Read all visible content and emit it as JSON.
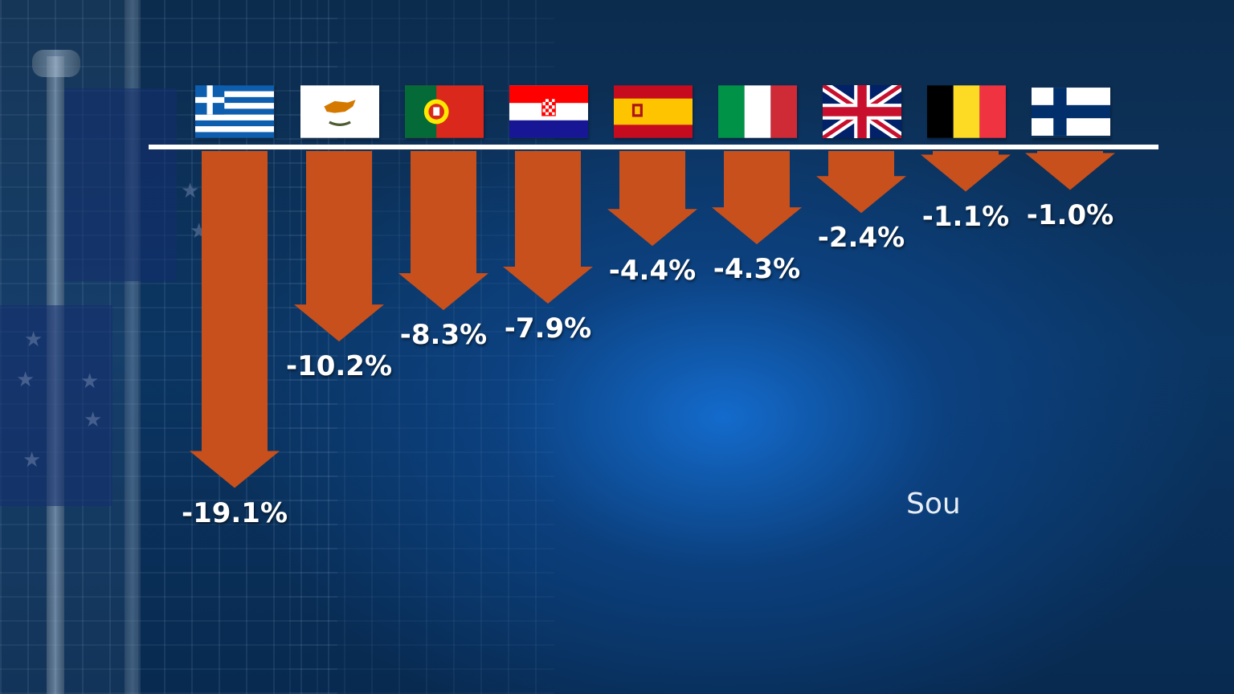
{
  "chart_data": {
    "type": "bar",
    "orientation": "downward-arrows",
    "categories": [
      "Greece",
      "Cyprus",
      "Portugal",
      "Croatia",
      "Spain",
      "Italy",
      "United Kingdom",
      "Belgium",
      "Finland"
    ],
    "values": [
      -19.1,
      -10.2,
      -8.3,
      -7.9,
      -4.4,
      -4.3,
      -2.4,
      -1.1,
      -1.0
    ],
    "labels": [
      "-19.1%",
      "-10.2%",
      "-8.3%",
      "-7.9%",
      "-4.4%",
      "-4.3%",
      "-2.4%",
      "-1.1%",
      "-1.0%"
    ],
    "category_markers": [
      "greece-flag",
      "cyprus-flag",
      "portugal-flag",
      "croatia-flag",
      "spain-flag",
      "italy-flag",
      "uk-flag",
      "belgium-flag",
      "finland-flag"
    ],
    "title": "",
    "xlabel": "",
    "ylabel": "",
    "ylim": [
      -19.1,
      0
    ],
    "grid": false,
    "arrow_color": "#c8501c"
  },
  "source_text": "Sou"
}
